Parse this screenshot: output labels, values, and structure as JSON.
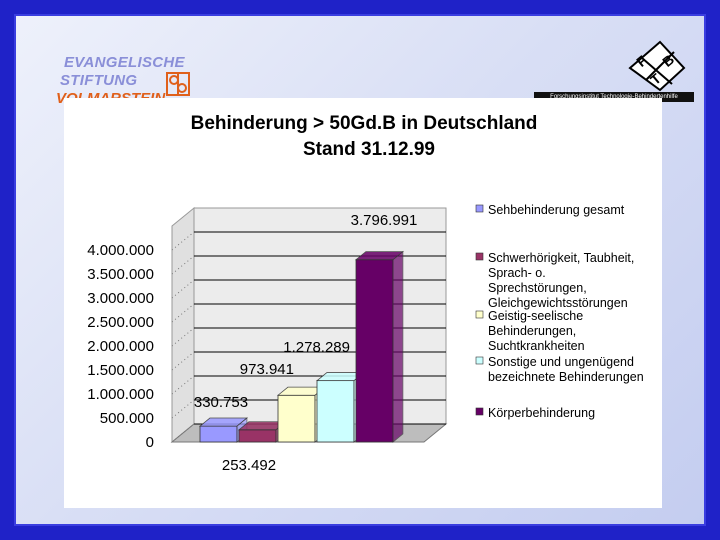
{
  "logo_left": {
    "line1": "EVANGELISCHE",
    "line2": "STIFTUNG",
    "line3": "VOLMARSTEIN"
  },
  "logo_right": {
    "letters": [
      "F",
      "T",
      "B"
    ],
    "caption": "Forschungsinstitut Technologie-Behindertenhilfe"
  },
  "colors": {
    "frame_border": "#1f22c8",
    "series": [
      "#9999ff",
      "#993366",
      "#ffffcc",
      "#ccffff",
      "#660066"
    ],
    "grid": "#000000",
    "wall": "#e0e0e0"
  },
  "chart_data": {
    "type": "bar",
    "title": "Behinderung > 50Gd.B in Deutschland",
    "subtitle": "Stand 31.12.99",
    "ylim": [
      0,
      4500000
    ],
    "yticks": [
      "0",
      "500.000",
      "1.000.000",
      "1.500.000",
      "2.000.000",
      "2.500.000",
      "3.000.000",
      "3.500.000",
      "4.000.000"
    ],
    "ytick_values": [
      0,
      500000,
      1000000,
      1500000,
      2000000,
      2500000,
      3000000,
      3500000,
      4000000
    ],
    "legend_position": "right",
    "series": [
      {
        "name": "Sehbehinderung gesamt",
        "values": [
          330753
        ],
        "label": "330.753"
      },
      {
        "name": "Schwerhörigkeit, Taubheit, Sprach- o. Sprechstörungen, Gleichgewichtsstörungen",
        "values": [
          253492
        ],
        "label": "253.492"
      },
      {
        "name": "Geistig-seelische Behinderungen, Suchtkrankheiten",
        "values": [
          973941
        ],
        "label": "973.941"
      },
      {
        "name": "Sonstige und ungenügend bezeichnete Behinderungen",
        "values": [
          1278289
        ],
        "label": "1.278.289"
      },
      {
        "name": "Körperbehinderung",
        "values": [
          3796991
        ],
        "label": "3.796.991"
      }
    ]
  }
}
